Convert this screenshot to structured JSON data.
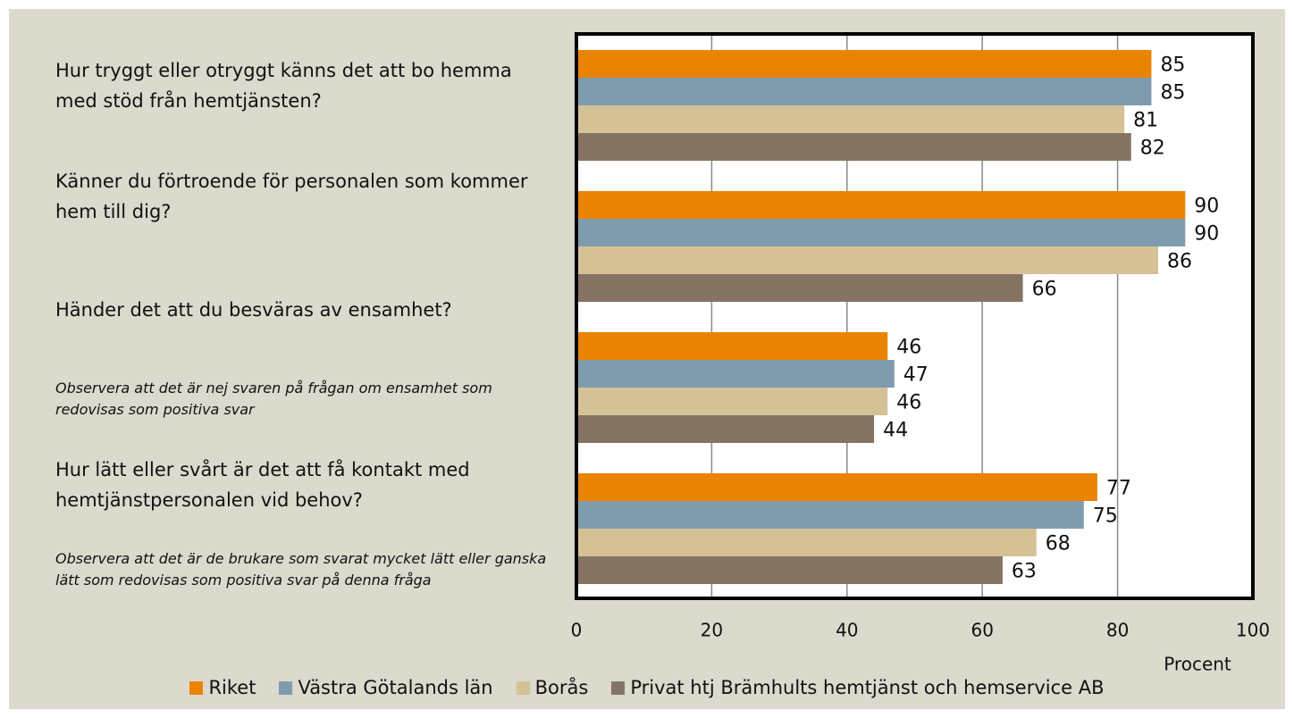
{
  "chart_data": {
    "type": "barh",
    "categories": [
      "Hur tryggt eller otryggt känns det att bo hemma med stöd från hemtjänsten?",
      "Känner du förtroende för personalen som kommer hem till dig?",
      "Händer det att du besväras av ensamhet?",
      "Hur lätt eller svårt är det att få kontakt med hemtjänstpersonalen vid behov?"
    ],
    "annotations": [
      "Observera att det är nej svaren på frågan om ensamhet som redovisas som positiva svar",
      "Observera att det är de brukare som svarat mycket lätt eller ganska lätt som redovisas som positiva svar på denna fråga"
    ],
    "series": [
      {
        "name": "Riket",
        "color": "#e98300",
        "values": [
          85,
          90,
          46,
          77
        ]
      },
      {
        "name": "Västra Götalands län",
        "color": "#7f9caf",
        "values": [
          85,
          90,
          47,
          75
        ]
      },
      {
        "name": "Borås",
        "color": "#d5c196",
        "values": [
          81,
          86,
          46,
          68
        ]
      },
      {
        "name": "Privat htj Brämhults hemtjänst och hemservice AB",
        "color": "#857463",
        "values": [
          82,
          66,
          44,
          63
        ]
      }
    ],
    "xlabel": "Procent",
    "xlim": [
      0,
      100
    ],
    "xticks": [
      0,
      20,
      40,
      60,
      80,
      100
    ],
    "grid": true,
    "legend": "bottom"
  }
}
